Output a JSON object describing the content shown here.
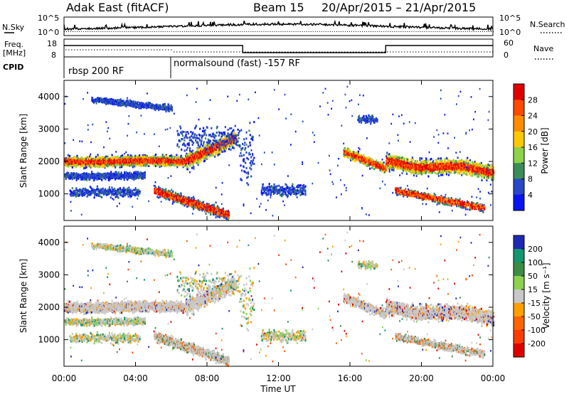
{
  "header": {
    "title": "Adak East (fitACF)",
    "beam": "Beam 15",
    "dates": "20/Apr/2015 – 21/Apr/2015"
  },
  "strip": {
    "nsky_label": "N.Sky",
    "nsky_ticks": [
      "10^5",
      "10^0"
    ],
    "nsearch_label": "N.Search",
    "nsearch_ticks": [
      "10^5",
      "10^0"
    ],
    "freq_label_top": "Freq.",
    "freq_label_unit": "[MHz]",
    "freq_ticks": [
      "18",
      "8"
    ],
    "nave_label": "Nave",
    "nave_ticks": [
      "60",
      "0"
    ],
    "cpid_label": "CPID",
    "cpid_segments": [
      {
        "label": "rbsp 200 RF",
        "start_hour": 0,
        "end_hour": 6
      },
      {
        "label": "normalsound (fast) -157 RF",
        "start_hour": 6,
        "end_hour": 24
      }
    ]
  },
  "x_axis": {
    "label": "Time UT",
    "ticks": [
      "00:00",
      "04:00",
      "08:00",
      "12:00",
      "16:00",
      "20:00",
      "00:00"
    ],
    "tick_hours": [
      0,
      4,
      8,
      12,
      16,
      20,
      24
    ]
  },
  "chart_data": [
    {
      "type": "heatmap",
      "name": "power",
      "ylabel": "Slant Range [km]",
      "ylim": [
        180,
        4500
      ],
      "yticks": [
        1000,
        2000,
        3000,
        4000
      ],
      "xlim_hours": [
        0,
        24
      ],
      "colorbar": {
        "label": "Power [dB]",
        "ticks": [
          "28",
          "24",
          "20",
          "16",
          "12",
          "8",
          "4"
        ],
        "colors": [
          "#e00000",
          "#ff4a00",
          "#ff8c00",
          "#ffc800",
          "#8cd24a",
          "#3c8c5a",
          "#2848c8",
          "#0a14f0"
        ]
      }
    },
    {
      "type": "heatmap",
      "name": "velocity",
      "ylabel": "Slant Range [km]",
      "ylim": [
        180,
        4500
      ],
      "yticks": [
        1000,
        2000,
        3000,
        4000
      ],
      "xlim_hours": [
        0,
        24
      ],
      "colorbar": {
        "label": "Velocity [m s⁻¹]",
        "ticks": [
          "200",
          "100",
          "50",
          "15",
          "-15",
          "-50",
          "-100",
          "-200"
        ],
        "colors": [
          "#1e28b4",
          "#14966e",
          "#3c8c46",
          "#8cd250",
          "#c8c8c8",
          "#ffa000",
          "#ff6400",
          "#ff3c00",
          "#e00000"
        ]
      }
    }
  ]
}
